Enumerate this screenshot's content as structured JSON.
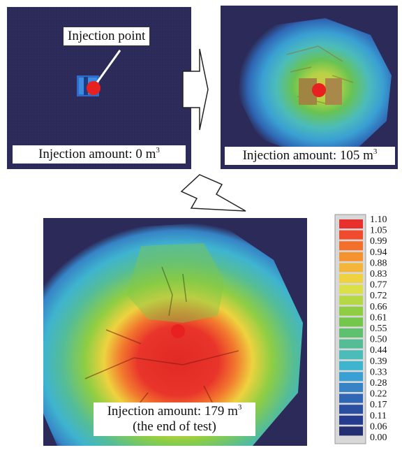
{
  "panels": {
    "p1": {
      "amount_prefix": "Injection amount: 0 m",
      "unit_sup": "3"
    },
    "p2": {
      "amount_prefix": "Injection amount: 105 m",
      "unit_sup": "3"
    },
    "p3": {
      "amount_prefix": "Injection amount: 179 m",
      "unit_sup": "3",
      "note": "(the end of test)"
    }
  },
  "injection_point_label": "Injection point",
  "legend": {
    "values": [
      "1.10",
      "1.05",
      "0.99",
      "0.94",
      "0.88",
      "0.83",
      "0.77",
      "0.72",
      "0.66",
      "0.61",
      "0.55",
      "0.50",
      "0.44",
      "0.39",
      "0.33",
      "0.28",
      "0.22",
      "0.17",
      "0.11",
      "0.06",
      "0.00"
    ],
    "colors": [
      "#e8302c",
      "#ef4b2c",
      "#f2702c",
      "#f4932f",
      "#f3b63a",
      "#eed23f",
      "#dbe048",
      "#b6d845",
      "#8fce43",
      "#73c74a",
      "#5fc070",
      "#55bd96",
      "#4cbcba",
      "#3fb4cf",
      "#3a9fd3",
      "#3683c6",
      "#2f67b5",
      "#2a4fa1",
      "#263d8f",
      "#242f72"
    ]
  },
  "colors": {
    "background": "#2b2a58",
    "marker": "#e82020"
  }
}
